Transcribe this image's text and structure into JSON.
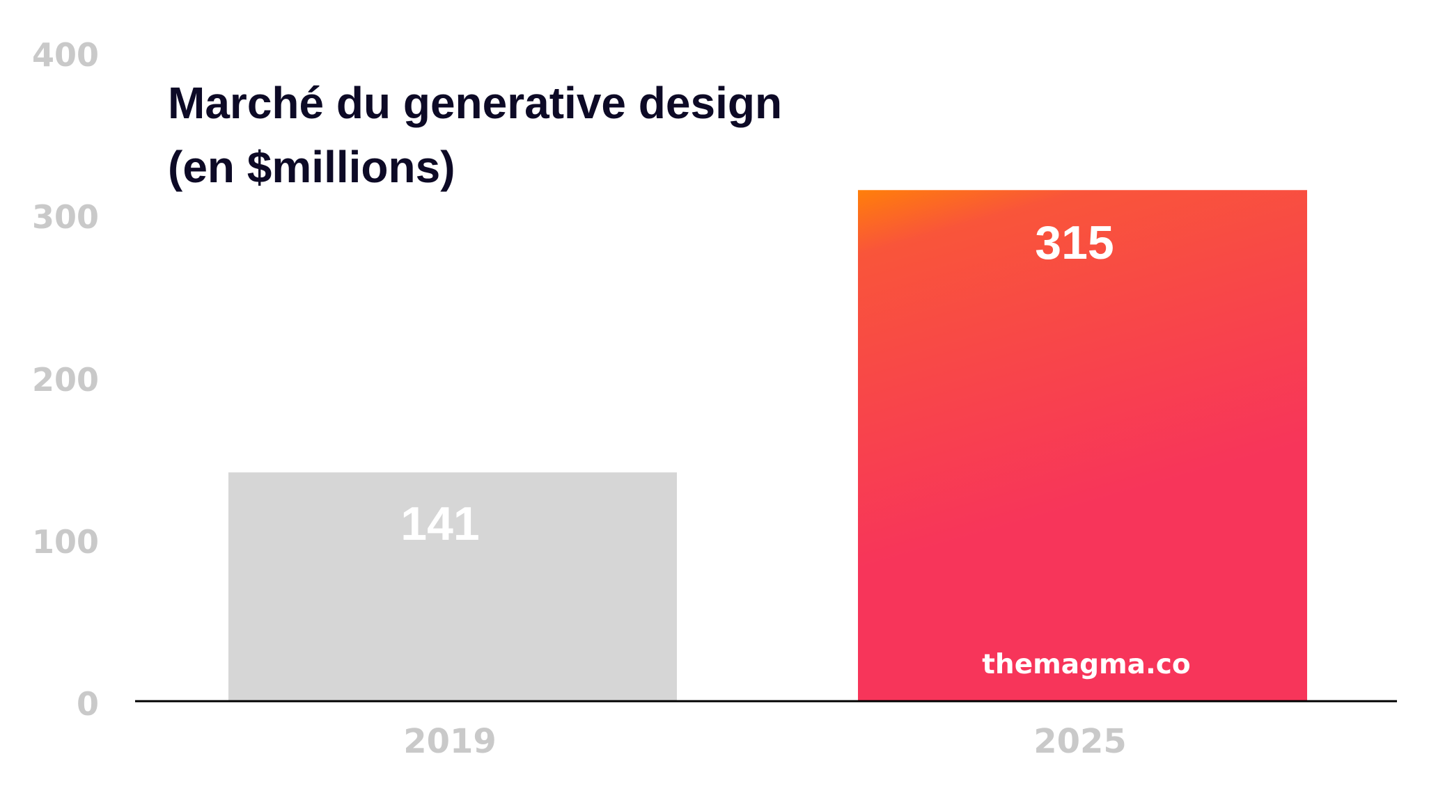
{
  "chart_data": {
    "type": "bar",
    "title_lines": [
      "Marché du generative design",
      "(en $millions)"
    ],
    "categories": [
      "2019",
      "2025"
    ],
    "values": [
      141,
      315
    ],
    "value_labels": [
      "141",
      "315"
    ],
    "ylim": [
      0,
      400
    ],
    "yticks": [
      "0",
      "100",
      "200",
      "300",
      "400"
    ],
    "xlabel": "",
    "ylabel": "",
    "grid": false,
    "colors": {
      "bar_2019": "#d6d6d6",
      "bar_2025_top": "#ff7f0a",
      "bar_2025_mid": "#f9553a",
      "bar_2025_bottom": "#f7355a",
      "tick": "#c9c9c9",
      "title": "#0d0a26",
      "axis": "#000000"
    }
  },
  "watermark": "themagma.co"
}
